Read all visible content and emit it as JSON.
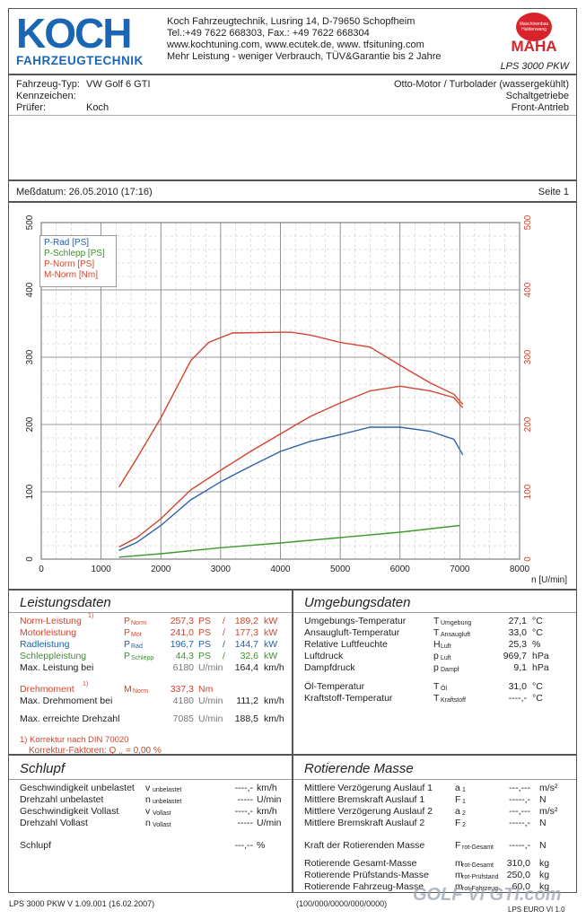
{
  "header": {
    "logo_top": "KOCH",
    "logo_bottom": "FAHRZEUGTECHNIK",
    "company_lines": [
      "Koch Fahrzeugtechnik, Lusring 14, D-79650 Schopfheim",
      "Tel.:+49 7622 668303, Fax.: +49 7622 668304",
      "www.kochtuning.com, www.ecutek.de, www. tfsituning.com",
      "Mehr Leistung - weniger Verbrauch, TÜV&Garantie bis 2 Jahre"
    ],
    "maha_badge": "Maschinenbau Haldenwang",
    "maha_name": "MAHA",
    "model": "LPS 3000 PKW"
  },
  "vehicle": {
    "type_label": "Fahrzeug-Typ:",
    "type_value": "VW Golf 6 GTI",
    "plate_label": "Kennzeichen:",
    "tester_label": "Prüfer:",
    "tester_value": "Koch",
    "engine": "Otto-Motor / Turbolader (wassergekühlt)",
    "gearbox": "Schaltgetriebe",
    "drive": "Front-Antrieb"
  },
  "meta": {
    "date": "Meßdatum: 26.05.2010 (17:16)",
    "page": "Seite 1"
  },
  "chart_data": {
    "type": "line",
    "xlabel": "n [U/min]",
    "xlim": [
      0,
      8000
    ],
    "ylim": [
      0,
      500
    ],
    "x_ticks": [
      "0",
      "1000",
      "2000",
      "3000",
      "4000",
      "5000",
      "6000",
      "7000",
      "8000"
    ],
    "y_ticks": [
      "0",
      "100",
      "200",
      "300",
      "400",
      "500"
    ],
    "legend": "top-left",
    "grid": true,
    "series": [
      {
        "name": "P-Rad [PS]",
        "color": "#2f62a8",
        "points": [
          [
            1300,
            13
          ],
          [
            1600,
            25
          ],
          [
            2000,
            50
          ],
          [
            2500,
            88
          ],
          [
            3000,
            115
          ],
          [
            3500,
            138
          ],
          [
            4000,
            160
          ],
          [
            4500,
            175
          ],
          [
            5000,
            185
          ],
          [
            5500,
            196
          ],
          [
            6000,
            196
          ],
          [
            6500,
            190
          ],
          [
            6900,
            178
          ],
          [
            7050,
            155
          ]
        ]
      },
      {
        "name": "P-Schlepp [PS]",
        "color": "#3e9a2e",
        "points": [
          [
            1300,
            3
          ],
          [
            2000,
            8
          ],
          [
            3000,
            17
          ],
          [
            4000,
            24
          ],
          [
            5000,
            32
          ],
          [
            6000,
            40
          ],
          [
            7000,
            50
          ]
        ]
      },
      {
        "name": "P-Norm [PS]",
        "color": "#d2452e",
        "points": [
          [
            1300,
            18
          ],
          [
            1600,
            32
          ],
          [
            2000,
            60
          ],
          [
            2500,
            103
          ],
          [
            3000,
            132
          ],
          [
            3500,
            160
          ],
          [
            4000,
            186
          ],
          [
            4500,
            212
          ],
          [
            5000,
            232
          ],
          [
            5500,
            250
          ],
          [
            6000,
            257
          ],
          [
            6500,
            250
          ],
          [
            6900,
            240
          ],
          [
            7050,
            225
          ]
        ]
      },
      {
        "name": "M-Norm [Nm]",
        "color": "#d2452e",
        "points": [
          [
            1300,
            107
          ],
          [
            1600,
            150
          ],
          [
            2000,
            210
          ],
          [
            2500,
            295
          ],
          [
            2800,
            322
          ],
          [
            3200,
            336
          ],
          [
            4000,
            337
          ],
          [
            4180,
            337
          ],
          [
            4500,
            333
          ],
          [
            5000,
            322
          ],
          [
            5500,
            315
          ],
          [
            6000,
            288
          ],
          [
            6500,
            262
          ],
          [
            6900,
            245
          ],
          [
            7050,
            230
          ]
        ]
      }
    ]
  },
  "leistung": {
    "title": "Leistungsdaten",
    "rows": [
      {
        "label": "Norm-Leistung",
        "note": "1)",
        "sym": "P",
        "symsub": "Norm",
        "v1": "257,3",
        "u1": "PS",
        "sep": "/",
        "v2": "189,2",
        "u2": "kW",
        "cls": "red"
      },
      {
        "label": "Motorleistung",
        "note": "",
        "sym": "P",
        "symsub": "Mot",
        "v1": "241,0",
        "u1": "PS",
        "sep": "/",
        "v2": "177,3",
        "u2": "kW",
        "cls": "red"
      },
      {
        "label": "Radleistung",
        "note": "",
        "sym": "P",
        "symsub": "Rad",
        "v1": "196,7",
        "u1": "PS",
        "sep": "/",
        "v2": "144,7",
        "u2": "kW",
        "cls": "blue"
      },
      {
        "label": "Schleppleistung",
        "note": "",
        "sym": "P",
        "symsub": "Schlepp",
        "v1": "44,3",
        "u1": "PS",
        "sep": "/",
        "v2": "32,6",
        "u2": "kW",
        "cls": "green"
      }
    ],
    "max_power": {
      "label": "Max. Leistung bei",
      "rpm": "6180",
      "rpm_unit": "U/min",
      "speed": "164,4",
      "speed_unit": "km/h"
    },
    "torque": {
      "label": "Drehmoment",
      "note": "1)",
      "sym": "M",
      "symsub": "Norm",
      "value": "337,3",
      "unit": "Nm"
    },
    "max_torque": {
      "label": "Max. Drehmoment bei",
      "rpm": "4180",
      "rpm_unit": "U/min",
      "speed": "111,2",
      "speed_unit": "km/h"
    },
    "max_rpm": {
      "label": "Max. erreichte Drehzahl",
      "rpm": "7085",
      "rpm_unit": "U/min",
      "speed": "188,5",
      "speed_unit": "km/h"
    },
    "korrektur": "1) Korrektur nach DIN 70020",
    "faktoren": "Korrektur-Faktoren: Q",
    "faktoren_sub": "v",
    "faktoren_val": "=   0,00 %"
  },
  "umgebung": {
    "title": "Umgebungsdaten",
    "rows": [
      {
        "label": "Umgebungs-Temperatur",
        "sym": "T",
        "symsub": "Umgebung",
        "value": "27,1",
        "unit": "°C"
      },
      {
        "label": "Ansaugluft-Temperatur",
        "sym": "T",
        "symsub": "Ansaugluft",
        "value": "33,0",
        "unit": "°C"
      },
      {
        "label": "Relative Luftfeuchte",
        "sym": "H",
        "symsub": "Luft",
        "value": "25,3",
        "unit": "%"
      },
      {
        "label": "Luftdruck",
        "sym": "p",
        "symsub": "Luft",
        "value": "969,7",
        "unit": "hPa"
      },
      {
        "label": "Dampfdruck",
        "sym": "p",
        "symsub": "Dampf",
        "value": "9,1",
        "unit": "hPa"
      },
      {
        "label": "Öl-Temperatur",
        "sym": "T",
        "symsub": "Öl",
        "value": "31,0",
        "unit": "°C"
      },
      {
        "label": "Kraftstoff-Temperatur",
        "sym": "T",
        "symsub": "Kraftstoff",
        "value": "----,-",
        "unit": "°C"
      }
    ]
  },
  "schlupf": {
    "title": "Schlupf",
    "rows": [
      {
        "label": "Geschwindigkeit unbelastet",
        "sym": "v",
        "symsub": "unbelastet",
        "value": "----,-",
        "unit": "km/h"
      },
      {
        "label": "Drehzahl unbelastet",
        "sym": "n",
        "symsub": "unbelastet",
        "value": "-----",
        "unit": "U/min"
      },
      {
        "label": "Geschwindigkeit Vollast",
        "sym": "v",
        "symsub": "Vollast",
        "value": "----,-",
        "unit": "km/h"
      },
      {
        "label": "Drehzahl Vollast",
        "sym": "n",
        "symsub": "Vollast",
        "value": "-----",
        "unit": "U/min"
      }
    ],
    "slip": {
      "label": "Schlupf",
      "value": "---,--",
      "unit": "%"
    }
  },
  "masse": {
    "title": "Rotierende Masse",
    "rows": [
      {
        "label": "Mittlere Verzögerung Auslauf 1",
        "sym": "a",
        "symsub": "1",
        "value": "---,---",
        "unit": "m/s²"
      },
      {
        "label": "Mittlere Bremskraft Auslauf 1",
        "sym": "F",
        "symsub": "1",
        "value": "-----,-",
        "unit": "N"
      },
      {
        "label": "Mittlere Verzögerung Auslauf 2",
        "sym": "a",
        "symsub": "2",
        "value": "---,---",
        "unit": "m/s²"
      },
      {
        "label": "Mittlere Bremskraft Auslauf 2",
        "sym": "F",
        "symsub": "2",
        "value": "-----,-",
        "unit": "N"
      }
    ],
    "kraft": {
      "label": "Kraft der Rotierenden Masse",
      "sym": "F",
      "symsub": "rot-Gesamt",
      "value": "-----,-",
      "unit": "N"
    },
    "mass_rows": [
      {
        "label": "Rotierende Gesamt-Masse",
        "sym": "m",
        "symsub": "rot-Gesamt",
        "value": "310,0",
        "unit": "kg"
      },
      {
        "label": "Rotierende Prüfstands-Masse",
        "sym": "m",
        "symsub": "rot-Prüfstand",
        "value": "250,0",
        "unit": "kg"
      },
      {
        "label": "Rotierende Fahrzeug-Masse",
        "sym": "m",
        "symsub": "rot-Fahrzeug",
        "value": "60,0",
        "unit": "kg"
      }
    ]
  },
  "footer": {
    "left": "LPS 3000 PKW V 1.09.001 (16.02.2007)",
    "center": "(100/000/0000/000/0000)",
    "watermark": "GOLF VI GTI.com",
    "right": "LPS EURO VI 1.0"
  }
}
